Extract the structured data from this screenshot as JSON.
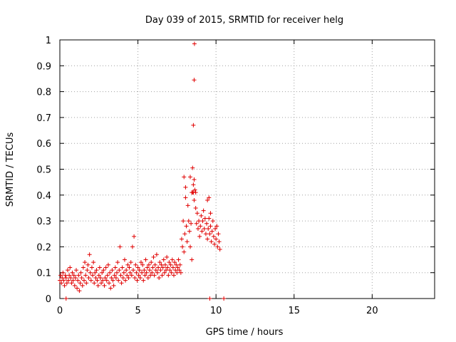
{
  "chart_data": {
    "type": "scatter",
    "title": "Day 039 of 2015, SRMTID for receiver helg",
    "xlabel": "GPS time / hours",
    "ylabel": "SRMTID / TECUs",
    "xlim": [
      0,
      24
    ],
    "ylim": [
      0,
      1
    ],
    "xticks": [
      0,
      5,
      10,
      15,
      20
    ],
    "xtick_labels": [
      "0",
      "5",
      "10",
      "15",
      "20"
    ],
    "yticks": [
      0,
      0.1,
      0.2,
      0.3,
      0.4,
      0.5,
      0.6,
      0.7,
      0.8,
      0.9,
      1
    ],
    "ytick_labels": [
      "0",
      "0.1",
      "0.2",
      "0.3",
      "0.4",
      "0.5",
      "0.6",
      "0.7",
      "0.8",
      "0.9",
      "1"
    ],
    "grid": true,
    "marker": "+",
    "marker_color": "#e00000",
    "series": [
      {
        "name": "SRMTID",
        "points": [
          [
            0.0,
            0.07
          ],
          [
            0.05,
            0.09
          ],
          [
            0.1,
            0.06
          ],
          [
            0.15,
            0.08
          ],
          [
            0.2,
            0.1
          ],
          [
            0.25,
            0.07
          ],
          [
            0.3,
            0.05
          ],
          [
            0.35,
            0.09
          ],
          [
            0.4,
            0.08
          ],
          [
            0.45,
            0.06
          ],
          [
            0.5,
            0.11
          ],
          [
            0.55,
            0.07
          ],
          [
            0.6,
            0.09
          ],
          [
            0.65,
            0.12
          ],
          [
            0.7,
            0.08
          ],
          [
            0.75,
            0.06
          ],
          [
            0.8,
            0.1
          ],
          [
            0.85,
            0.07
          ],
          [
            0.9,
            0.09
          ],
          [
            0.95,
            0.05
          ],
          [
            1.0,
            0.08
          ],
          [
            1.05,
            0.11
          ],
          [
            1.1,
            0.04
          ],
          [
            1.15,
            0.07
          ],
          [
            1.2,
            0.09
          ],
          [
            1.25,
            0.03
          ],
          [
            1.3,
            0.06
          ],
          [
            1.35,
            0.1
          ],
          [
            1.4,
            0.08
          ],
          [
            1.45,
            0.05
          ],
          [
            1.5,
            0.12
          ],
          [
            1.55,
            0.07
          ],
          [
            1.6,
            0.14
          ],
          [
            1.65,
            0.09
          ],
          [
            1.7,
            0.06
          ],
          [
            1.75,
            0.11
          ],
          [
            1.8,
            0.13
          ],
          [
            1.85,
            0.08
          ],
          [
            1.9,
            0.17
          ],
          [
            1.95,
            0.1
          ],
          [
            2.0,
            0.07
          ],
          [
            2.05,
            0.12
          ],
          [
            2.1,
            0.09
          ],
          [
            2.15,
            0.14
          ],
          [
            2.2,
            0.06
          ],
          [
            2.25,
            0.1
          ],
          [
            2.3,
            0.08
          ],
          [
            2.35,
            0.11
          ],
          [
            2.4,
            0.07
          ],
          [
            2.45,
            0.05
          ],
          [
            2.5,
            0.09
          ],
          [
            2.55,
            0.12
          ],
          [
            2.6,
            0.08
          ],
          [
            2.65,
            0.06
          ],
          [
            2.7,
            0.1
          ],
          [
            2.75,
            0.07
          ],
          [
            2.8,
            0.11
          ],
          [
            2.85,
            0.05
          ],
          [
            2.9,
            0.08
          ],
          [
            2.95,
            0.12
          ],
          [
            3.0,
            0.07
          ],
          [
            3.05,
            0.09
          ],
          [
            3.1,
            0.13
          ],
          [
            3.15,
            0.06
          ],
          [
            3.2,
            0.1
          ],
          [
            3.25,
            0.04
          ],
          [
            3.3,
            0.08
          ],
          [
            3.35,
            0.11
          ],
          [
            3.4,
            0.07
          ],
          [
            3.45,
            0.05
          ],
          [
            3.5,
            0.09
          ],
          [
            3.55,
            0.12
          ],
          [
            3.6,
            0.08
          ],
          [
            3.65,
            0.1
          ],
          [
            3.7,
            0.14
          ],
          [
            3.75,
            0.07
          ],
          [
            3.8,
            0.11
          ],
          [
            3.85,
            0.2
          ],
          [
            3.9,
            0.09
          ],
          [
            3.95,
            0.06
          ],
          [
            4.0,
            0.12
          ],
          [
            4.05,
            0.08
          ],
          [
            4.1,
            0.1
          ],
          [
            4.15,
            0.15
          ],
          [
            4.2,
            0.07
          ],
          [
            4.25,
            0.11
          ],
          [
            4.3,
            0.09
          ],
          [
            4.35,
            0.13
          ],
          [
            4.4,
            0.08
          ],
          [
            4.45,
            0.12
          ],
          [
            4.5,
            0.1
          ],
          [
            4.55,
            0.14
          ],
          [
            4.6,
            0.09
          ],
          [
            4.65,
            0.2
          ],
          [
            4.7,
            0.11
          ],
          [
            4.75,
            0.24
          ],
          [
            4.8,
            0.08
          ],
          [
            4.85,
            0.13
          ],
          [
            4.9,
            0.1
          ],
          [
            4.95,
            0.07
          ],
          [
            5.0,
            0.12
          ],
          [
            5.05,
            0.09
          ],
          [
            5.1,
            0.11
          ],
          [
            5.15,
            0.08
          ],
          [
            5.2,
            0.14
          ],
          [
            5.25,
            0.1
          ],
          [
            5.3,
            0.13
          ],
          [
            5.35,
            0.07
          ],
          [
            5.4,
            0.11
          ],
          [
            5.45,
            0.09
          ],
          [
            5.5,
            0.15
          ],
          [
            5.55,
            0.1
          ],
          [
            5.6,
            0.12
          ],
          [
            5.65,
            0.08
          ],
          [
            5.7,
            0.13
          ],
          [
            5.75,
            0.11
          ],
          [
            5.8,
            0.09
          ],
          [
            5.85,
            0.14
          ],
          [
            5.9,
            0.1
          ],
          [
            5.95,
            0.12
          ],
          [
            6.0,
            0.16
          ],
          [
            6.05,
            0.09
          ],
          [
            6.1,
            0.13
          ],
          [
            6.15,
            0.11
          ],
          [
            6.2,
            0.17
          ],
          [
            6.25,
            0.1
          ],
          [
            6.3,
            0.12
          ],
          [
            6.35,
            0.08
          ],
          [
            6.4,
            0.14
          ],
          [
            6.45,
            0.11
          ],
          [
            6.5,
            0.13
          ],
          [
            6.55,
            0.09
          ],
          [
            6.6,
            0.12
          ],
          [
            6.65,
            0.15
          ],
          [
            6.7,
            0.1
          ],
          [
            6.75,
            0.13
          ],
          [
            6.8,
            0.11
          ],
          [
            6.85,
            0.16
          ],
          [
            6.9,
            0.12
          ],
          [
            6.95,
            0.09
          ],
          [
            7.0,
            0.14
          ],
          [
            7.05,
            0.11
          ],
          [
            7.1,
            0.13
          ],
          [
            7.15,
            0.1
          ],
          [
            7.2,
            0.15
          ],
          [
            7.25,
            0.12
          ],
          [
            7.3,
            0.09
          ],
          [
            7.35,
            0.14
          ],
          [
            7.4,
            0.11
          ],
          [
            7.45,
            0.13
          ],
          [
            7.5,
            0.1
          ],
          [
            7.55,
            0.12
          ],
          [
            7.6,
            0.15
          ],
          [
            7.65,
            0.11
          ],
          [
            7.7,
            0.13
          ],
          [
            7.75,
            0.1
          ],
          [
            7.8,
            0.23
          ],
          [
            7.85,
            0.2
          ],
          [
            7.9,
            0.3
          ],
          [
            7.95,
            0.18
          ],
          [
            8.0,
            0.25
          ],
          [
            8.05,
            0.39
          ],
          [
            8.1,
            0.28
          ],
          [
            8.15,
            0.22
          ],
          [
            8.2,
            0.36
          ],
          [
            8.25,
            0.3
          ],
          [
            8.3,
            0.26
          ],
          [
            8.35,
            0.2
          ],
          [
            8.4,
            0.29
          ],
          [
            8.45,
            0.15
          ],
          [
            8.5,
            0.41
          ],
          [
            8.55,
            0.44
          ],
          [
            8.6,
            0.38
          ],
          [
            8.65,
            0.42
          ],
          [
            8.7,
            0.35
          ],
          [
            8.75,
            0.29
          ],
          [
            8.8,
            0.33
          ],
          [
            8.85,
            0.27
          ],
          [
            8.9,
            0.3
          ],
          [
            8.95,
            0.24
          ],
          [
            9.0,
            0.28
          ],
          [
            9.05,
            0.32
          ],
          [
            9.1,
            0.26
          ],
          [
            9.15,
            0.3
          ],
          [
            9.2,
            0.34
          ],
          [
            9.25,
            0.27
          ],
          [
            9.3,
            0.31
          ],
          [
            9.35,
            0.25
          ],
          [
            9.4,
            0.29
          ],
          [
            9.45,
            0.23
          ],
          [
            9.5,
            0.27
          ],
          [
            9.55,
            0.31
          ],
          [
            9.6,
            0.25
          ],
          [
            9.65,
            0.28
          ],
          [
            9.7,
            0.22
          ],
          [
            9.75,
            0.26
          ],
          [
            9.8,
            0.3
          ],
          [
            9.85,
            0.24
          ],
          [
            9.9,
            0.21
          ],
          [
            9.95,
            0.27
          ],
          [
            10.0,
            0.23
          ],
          [
            10.05,
            0.28
          ],
          [
            10.1,
            0.2
          ],
          [
            10.15,
            0.25
          ],
          [
            10.2,
            0.22
          ],
          [
            10.25,
            0.19
          ],
          [
            8.35,
            0.47
          ],
          [
            8.45,
            0.41
          ],
          [
            8.55,
            0.41
          ],
          [
            8.6,
            0.46
          ],
          [
            8.7,
            0.41
          ],
          [
            9.45,
            0.38
          ],
          [
            9.55,
            0.39
          ],
          [
            9.65,
            0.33
          ],
          [
            8.05,
            0.43
          ],
          [
            7.95,
            0.47
          ],
          [
            8.5,
            0.505
          ],
          [
            8.55,
            0.67
          ],
          [
            8.6,
            0.845
          ],
          [
            8.62,
            0.985
          ],
          [
            0.4,
            0.0
          ],
          [
            9.6,
            0.0
          ],
          [
            10.5,
            0.0
          ]
        ]
      }
    ]
  }
}
